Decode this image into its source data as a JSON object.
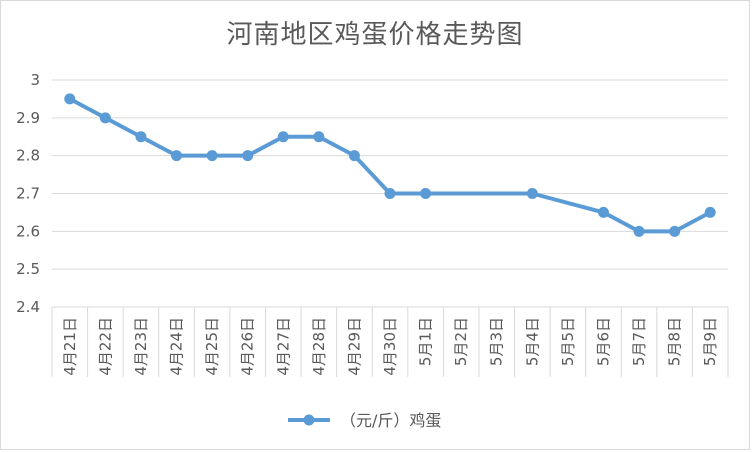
{
  "chart_data": {
    "type": "line",
    "title": "河南地区鸡蛋价格走势图",
    "categories": [
      "4月21日",
      "4月22日",
      "4月23日",
      "4月24日",
      "4月25日",
      "4月26日",
      "4月27日",
      "4月28日",
      "4月29日",
      "4月30日",
      "5月1日",
      "5月2日",
      "5月3日",
      "5月4日",
      "5月5日",
      "5月6日",
      "5月7日",
      "5月8日",
      "5月9日"
    ],
    "series": [
      {
        "name": "（元/斤）鸡蛋",
        "values": [
          2.95,
          2.9,
          2.85,
          2.8,
          2.8,
          2.8,
          2.85,
          2.85,
          2.8,
          2.7,
          2.7,
          null,
          null,
          2.7,
          null,
          2.65,
          2.6,
          2.6,
          2.65
        ],
        "color": "#5b9bd5"
      }
    ],
    "ylim": [
      2.4,
      3.0
    ],
    "yticks": [
      "2.4",
      "2.5",
      "2.6",
      "2.7",
      "2.8",
      "2.9",
      "3"
    ],
    "grid": true,
    "legend": "bottom"
  }
}
